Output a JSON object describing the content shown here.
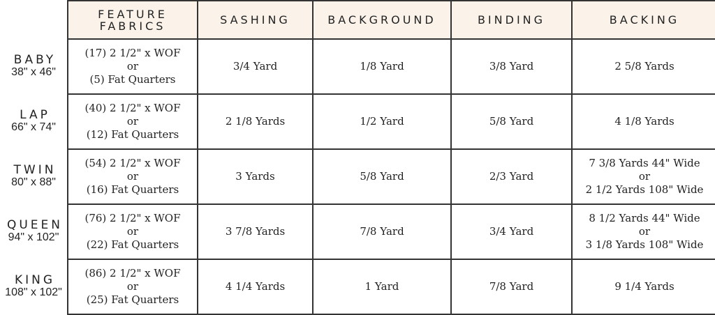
{
  "headers": [
    "FEATURE FABRICS",
    "SASHING",
    "BACKGROUND",
    "BINDING",
    "BACKING"
  ],
  "header_bg": "#fbf3ea",
  "rows": [
    {
      "name": "BABY",
      "size": "38\" x 46\"",
      "feature": [
        "(17) 2 1/2\" x WOF",
        "or",
        "(5) Fat Quarters"
      ],
      "sashing": "3/4 Yard",
      "background": "1/8 Yard",
      "binding": "3/8 Yard",
      "backing": [
        "2 5/8 Yards"
      ]
    },
    {
      "name": "LAP",
      "size": "66\" x 74\"",
      "feature": [
        "(40) 2 1/2\" x WOF",
        "or",
        "(12) Fat Quarters"
      ],
      "sashing": "2 1/8 Yards",
      "background": "1/2 Yard",
      "binding": "5/8 Yard",
      "backing": [
        "4 1/8 Yards"
      ]
    },
    {
      "name": "TWIN",
      "size": "80\" x 88\"",
      "feature": [
        "(54) 2 1/2\" x WOF",
        "or",
        "(16) Fat Quarters"
      ],
      "sashing": "3 Yards",
      "background": "5/8 Yard",
      "binding": "2/3 Yard",
      "backing": [
        "7 3/8 Yards 44\" Wide",
        "or",
        "2 1/2 Yards 108\" Wide"
      ]
    },
    {
      "name": "QUEEN",
      "size": "94\" x 102\"",
      "feature": [
        "(76) 2 1/2\" x WOF",
        "or",
        "(22) Fat Quarters"
      ],
      "sashing": "3 7/8 Yards",
      "background": "7/8 Yard",
      "binding": "3/4 Yard",
      "backing": [
        "8 1/2 Yards 44\" Wide",
        "or",
        "3 1/8 Yards 108\" Wide"
      ]
    },
    {
      "name": "KING",
      "size": "108\" x 102\"",
      "feature": [
        "(86) 2 1/2\" x WOF",
        "or",
        "(25) Fat Quarters"
      ],
      "sashing": "4 1/4 Yards",
      "background": "1 Yard",
      "binding": "7/8 Yard",
      "backing": [
        "9 1/4 Yards"
      ]
    }
  ]
}
